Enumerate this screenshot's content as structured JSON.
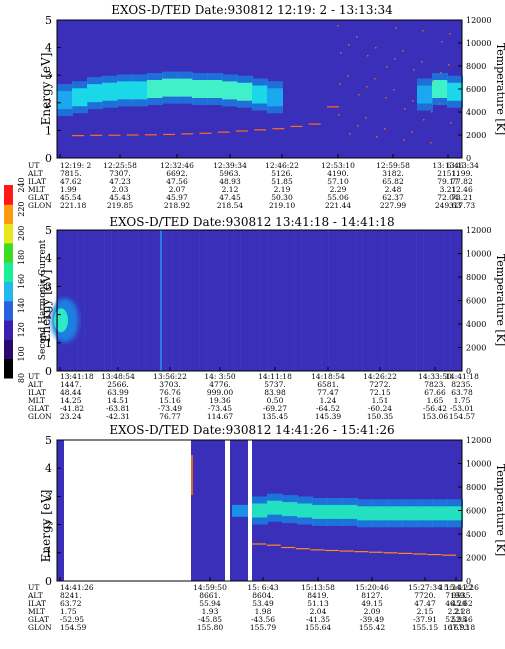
{
  "chart_data": [
    {
      "type": "heatmap",
      "title": "EXOS-D/TED   Date:930812  12:19: 2 - 13:13:34",
      "ylabel": "Energy [eV]",
      "y2label": "Temperature [K]",
      "ylim": [
        0,
        5
      ],
      "y2lim": [
        0,
        12000
      ],
      "yticks": [
        "0",
        "1",
        "2",
        "3",
        "4",
        "5"
      ],
      "y2ticks": [
        "0",
        "2000",
        "4000",
        "6000",
        "8000",
        "10000",
        "12000"
      ],
      "orbit_labels": [
        "UT",
        "ALT",
        "ILAT",
        "MLT",
        "GLAT",
        "GLON"
      ],
      "orbit_columns": [
        [
          "12:19: 2",
          "7815.",
          "47.62",
          "1.99",
          "45.54",
          "221.18"
        ],
        [
          "12:25:58",
          "7307.",
          "47.23",
          "2.03",
          "45.43",
          "219.85"
        ],
        [
          "12:32:46",
          "6692.",
          "47.56",
          "2.07",
          "45.97",
          "218.92"
        ],
        [
          "12:39:34",
          "5963.",
          "48.93",
          "2.12",
          "47.45",
          "218.54"
        ],
        [
          "12:46:22",
          "5126.",
          "51.85",
          "2.19",
          "50.30",
          "219.10"
        ],
        [
          "12:53:10",
          "4190.",
          "57.10",
          "2.29",
          "55.06",
          "221.44"
        ],
        [
          "12:59:58",
          "3182.",
          "65.82",
          "2.48",
          "62.37",
          "227.99"
        ],
        [
          "13: 6:46",
          "2151.",
          "79.17",
          "3.21",
          "72.04",
          "249.63"
        ],
        [
          "13:13:34",
          "1199.",
          "77.82",
          "12.46",
          "73.21",
          "317.73"
        ]
      ],
      "band_energy_ev": [
        2.1,
        2.2,
        2.35,
        2.4,
        2.45,
        2.45,
        2.5,
        2.55,
        2.55,
        2.5,
        2.5,
        2.45,
        2.4,
        2.3,
        2.2,
        0,
        0,
        0,
        0,
        0,
        0,
        0,
        0,
        0,
        2.3,
        2.5,
        2.4
      ],
      "band_intensity": [
        0.85,
        0.9,
        0.9,
        0.9,
        0.9,
        0.9,
        0.95,
        0.95,
        0.95,
        0.95,
        0.95,
        0.95,
        0.95,
        0.9,
        0.8,
        0.1,
        0.05,
        0.05,
        0.05,
        0.05,
        0.05,
        0.05,
        0.05,
        0.1,
        0.8,
        0.95,
        0.9
      ],
      "temperature_k": [
        2000,
        2020,
        2030,
        2050,
        2070,
        2100,
        2150,
        2200,
        2300,
        2400,
        2500,
        2600,
        2800,
        3000,
        4500
      ]
    },
    {
      "type": "heatmap",
      "title": "EXOS-D/TED   Date:930812  13:41:18 - 14:41:18",
      "ylabel": "Energy [eV]",
      "y2label": "Temperature [K]",
      "ylim": [
        0,
        5
      ],
      "y2lim": [
        0,
        12000
      ],
      "yticks": [
        "0",
        "1",
        "2",
        "3",
        "4",
        "5"
      ],
      "y2ticks": [
        "0",
        "2000",
        "4000",
        "6000",
        "8000",
        "10000",
        "12000"
      ],
      "colorbar": {
        "label": "Second Harmonic Current",
        "ticks": [
          "80",
          "100",
          "120",
          "140",
          "160",
          "180",
          "200",
          "220",
          "240"
        ],
        "colors": [
          "#000000",
          "#2a0a6e",
          "#3a1fb0",
          "#2a5fe0",
          "#22b8ee",
          "#1aee9a",
          "#3cdc20",
          "#e8e820",
          "#ff9a10",
          "#ff1a1a"
        ]
      },
      "orbit_labels": [
        "UT",
        "ALT",
        "ILAT",
        "MLT",
        "GLAT",
        "GLON"
      ],
      "orbit_columns": [
        [
          "13:41:18",
          "1447.",
          "48.44",
          "14.25",
          "-41.82",
          "23.24"
        ],
        [
          "13:48:54",
          "2566.",
          "63.99",
          "14.51",
          "-63.81",
          "-42.31"
        ],
        [
          "13:56:22",
          "3703.",
          "76.76",
          "15.16",
          "-73.49",
          "76.77"
        ],
        [
          "14: 3:50",
          "4776.",
          "999.00",
          "19.36",
          "-73.45",
          "114.67"
        ],
        [
          "14:11:18",
          "5737.",
          "83.98",
          "0.50",
          "-69.27",
          "135.45"
        ],
        [
          "14:18:54",
          "6581.",
          "77.47",
          "1.24",
          "-64.52",
          "145.39"
        ],
        [
          "14:26:22",
          "7272.",
          "72.15",
          "1.51",
          "-60.24",
          "150.35"
        ],
        [
          "14:33:50",
          "7823.",
          "67.66",
          "1.65",
          "-56.42",
          "153.06"
        ],
        [
          "14:41:18",
          "8235.",
          "63.78",
          "1.75",
          "-53.01",
          "154.57"
        ]
      ]
    },
    {
      "type": "heatmap",
      "title": "EXOS-D/TED   Date:930812  14:41:26 - 15:41:26",
      "ylabel": "Energy [eV]",
      "y2label": "Temperature [K]",
      "ylim": [
        0,
        5
      ],
      "y2lim": [
        0,
        12000
      ],
      "yticks": [
        "0",
        "1",
        "2",
        "3",
        "4",
        "5"
      ],
      "y2ticks": [
        "0",
        "2000",
        "4000",
        "6000",
        "8000",
        "10000",
        "12000"
      ],
      "orbit_labels": [
        "UT",
        "ALT",
        "ILAT",
        "MLT",
        "GLAT",
        "GLON"
      ],
      "orbit_columns": [
        [
          "14:41:26",
          "8241.",
          "63.72",
          "1.75",
          "-52.95",
          "154.59"
        ],
        [
          "",
          "",
          "",
          "",
          "",
          ""
        ],
        [
          "",
          "",
          "",
          "",
          "",
          ""
        ],
        [
          "14:59:50",
          "8661.",
          "55.94",
          "1.93",
          "-45.85",
          "155.80"
        ],
        [
          "15: 6:43",
          "8604.",
          "53.49",
          "1.98",
          "-43.56",
          "155.79"
        ],
        [
          "15:13:58",
          "8419.",
          "51.13",
          "2.04",
          "-41.35",
          "155.64"
        ],
        [
          "15:20:46",
          "8127.",
          "49.15",
          "2.09",
          "-39.49",
          "155.42"
        ],
        [
          "15:27:34",
          "7720.",
          "47.47",
          "2.15",
          "-37.91",
          "155.15"
        ],
        [
          "15:34:22",
          "7199.",
          "46.20",
          "2.21",
          "52.95",
          "167.93"
        ],
        [
          "15:41:26",
          "6535.",
          "45.62",
          "2.28",
          "52.46",
          "167.18"
        ]
      ],
      "band_energy_ev": [
        2.5,
        2.6,
        2.55,
        2.5,
        2.45,
        2.45,
        2.45,
        2.4,
        2.4,
        2.4,
        2.4,
        2.4,
        2.4,
        2.4
      ],
      "temperature_k": [
        3200,
        3100,
        2900,
        2800,
        2700,
        2650,
        2600,
        2550,
        2500,
        2450,
        2400,
        2350,
        2300,
        2250
      ]
    }
  ]
}
